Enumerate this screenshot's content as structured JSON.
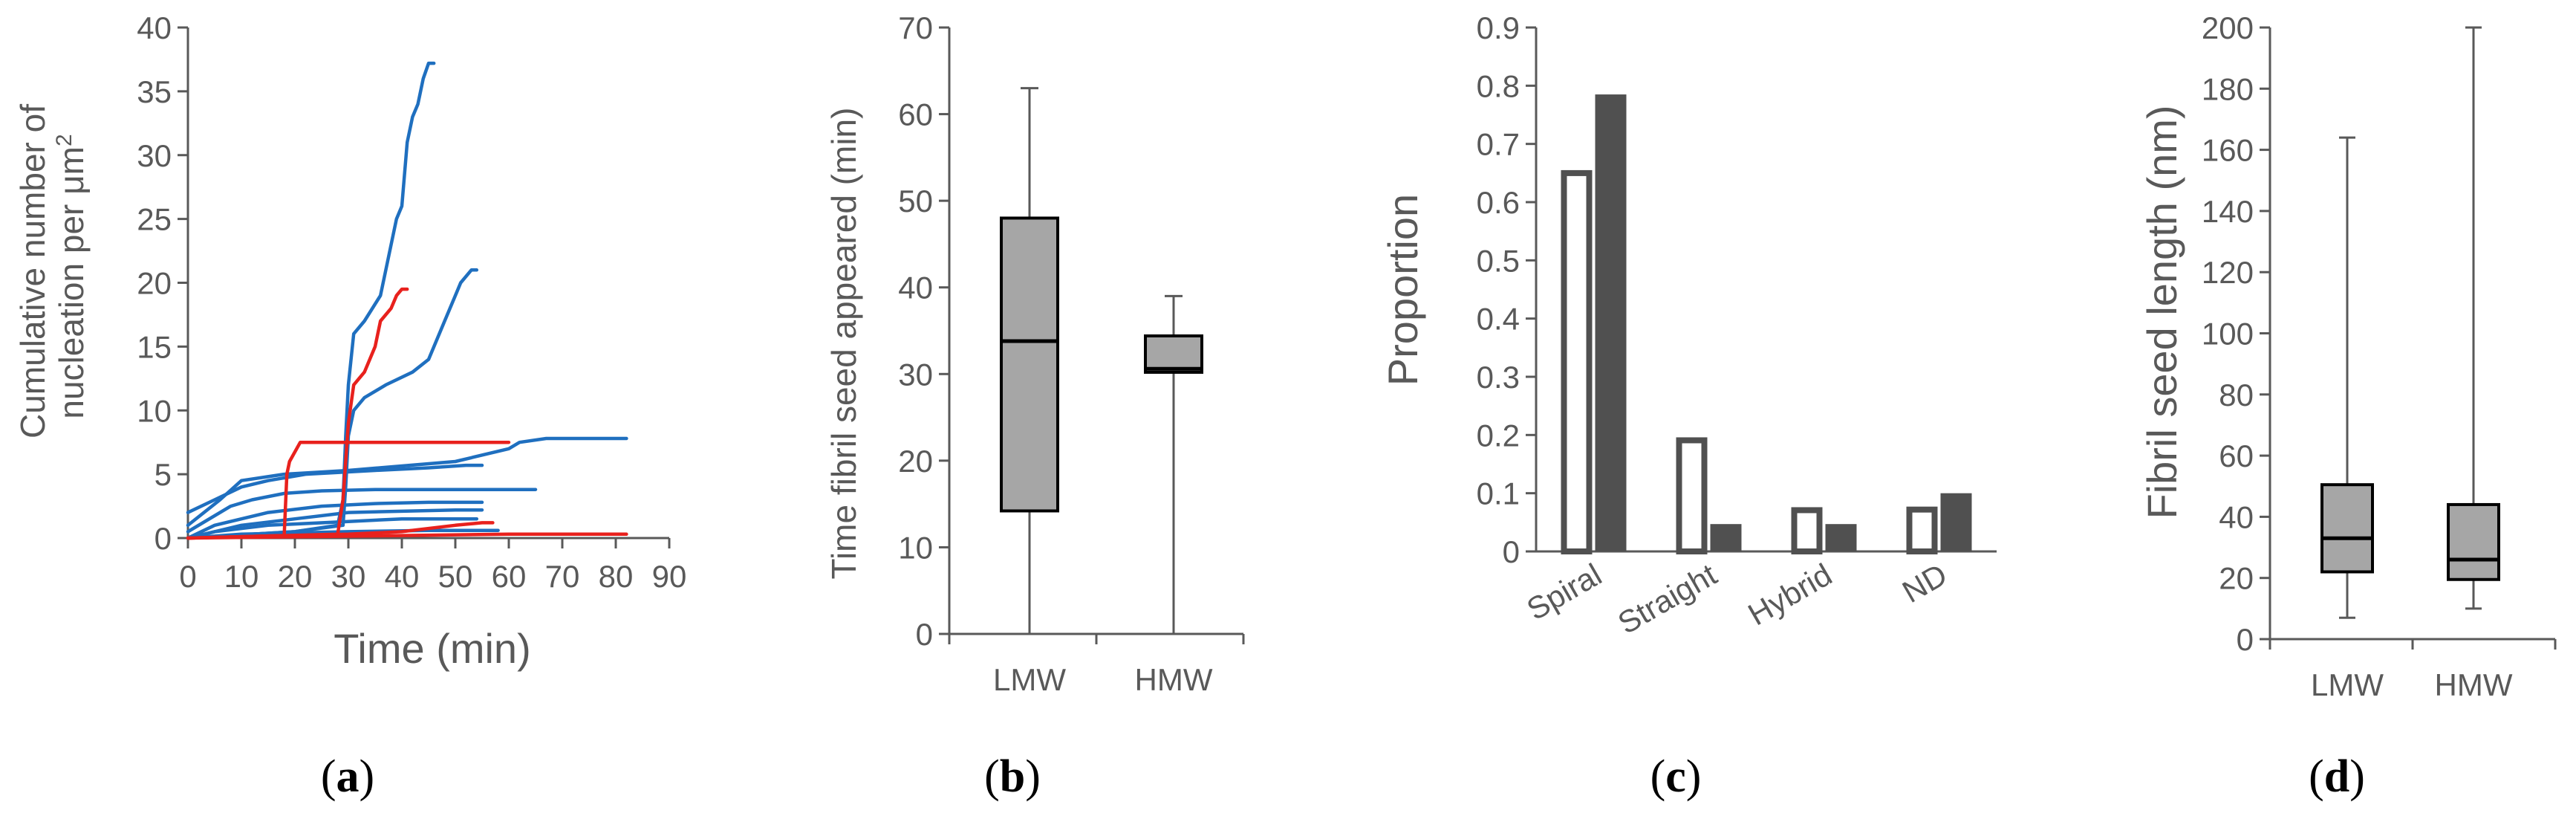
{
  "colors": {
    "axis": "#595959",
    "text": "#595959",
    "blue": "#1f6fbf",
    "red": "#e8211d",
    "box_fill": "#a6a6a6",
    "dark_bar": "#505050",
    "white_bar": "#ffffff"
  },
  "chart_data": [
    {
      "panel": "a",
      "type": "line",
      "xlabel": "Time (min)",
      "ylabel_line1": "Cumulative number of",
      "ylabel_line2": "nucleation per μm",
      "ylabel_sup": "2",
      "xlim": [
        0,
        90
      ],
      "ylim": [
        0,
        40
      ],
      "xticks": [
        "0",
        "10",
        "20",
        "30",
        "40",
        "50",
        "60",
        "70",
        "80",
        "90"
      ],
      "yticks": [
        "0",
        "5",
        "10",
        "15",
        "20",
        "25",
        "30",
        "35",
        "40"
      ],
      "series": [
        {
          "color": "blue",
          "points": [
            [
              0,
              0
            ],
            [
              20,
              0.5
            ],
            [
              28,
              1
            ],
            [
              29,
              3
            ],
            [
              29.5,
              8
            ],
            [
              30,
              12
            ],
            [
              31,
              16
            ],
            [
              33,
              17
            ],
            [
              36,
              19
            ],
            [
              37,
              21
            ],
            [
              39,
              25
            ],
            [
              40,
              26
            ],
            [
              41,
              31
            ],
            [
              42,
              33
            ],
            [
              43,
              34
            ],
            [
              44,
              36
            ],
            [
              45,
              37.2
            ],
            [
              46,
              37.2
            ]
          ]
        },
        {
          "color": "blue",
          "points": [
            [
              0,
              0
            ],
            [
              20,
              0.5
            ],
            [
              29,
              1
            ],
            [
              29.5,
              4
            ],
            [
              30,
              8
            ],
            [
              31,
              10
            ],
            [
              33,
              11
            ],
            [
              37,
              12
            ],
            [
              42,
              13
            ],
            [
              45,
              14
            ],
            [
              48,
              17
            ],
            [
              50,
              19
            ],
            [
              51,
              20
            ],
            [
              53,
              21
            ],
            [
              54,
              21
            ]
          ]
        },
        {
          "color": "blue",
          "points": [
            [
              0,
              1
            ],
            [
              3,
              2
            ],
            [
              6,
              3
            ],
            [
              10,
              4.5
            ],
            [
              18,
              5
            ],
            [
              30,
              5.3
            ],
            [
              50,
              6
            ],
            [
              60,
              7
            ],
            [
              62,
              7.5
            ],
            [
              67,
              7.8
            ],
            [
              70,
              7.8
            ],
            [
              82,
              7.8
            ]
          ]
        },
        {
          "color": "blue",
          "points": [
            [
              0,
              2
            ],
            [
              5,
              3
            ],
            [
              10,
              4
            ],
            [
              15,
              4.5
            ],
            [
              22,
              5
            ],
            [
              35,
              5.3
            ],
            [
              45,
              5.5
            ],
            [
              52,
              5.7
            ],
            [
              55,
              5.7
            ]
          ]
        },
        {
          "color": "blue",
          "points": [
            [
              0,
              0.5
            ],
            [
              8,
              2.5
            ],
            [
              12,
              3
            ],
            [
              18,
              3.5
            ],
            [
              25,
              3.7
            ],
            [
              35,
              3.8
            ],
            [
              50,
              3.8
            ],
            [
              60,
              3.8
            ],
            [
              65,
              3.8
            ]
          ]
        },
        {
          "color": "blue",
          "points": [
            [
              0,
              0
            ],
            [
              5,
              1
            ],
            [
              15,
              2
            ],
            [
              25,
              2.5
            ],
            [
              35,
              2.7
            ],
            [
              45,
              2.8
            ],
            [
              55,
              2.8
            ]
          ]
        },
        {
          "color": "blue",
          "points": [
            [
              0,
              0
            ],
            [
              10,
              1
            ],
            [
              20,
              1.5
            ],
            [
              30,
              2
            ],
            [
              40,
              2.1
            ],
            [
              50,
              2.2
            ],
            [
              55,
              2.2
            ]
          ]
        },
        {
          "color": "blue",
          "points": [
            [
              0,
              0
            ],
            [
              5,
              0.5
            ],
            [
              15,
              1
            ],
            [
              30,
              1.3
            ],
            [
              40,
              1.5
            ],
            [
              54,
              1.5
            ]
          ]
        },
        {
          "color": "blue",
          "points": [
            [
              0,
              0
            ],
            [
              10,
              0.3
            ],
            [
              30,
              0.5
            ],
            [
              45,
              0.6
            ],
            [
              58,
              0.6
            ]
          ]
        },
        {
          "color": "red",
          "points": [
            [
              0,
              0
            ],
            [
              18,
              0.2
            ],
            [
              18.5,
              5
            ],
            [
              19,
              6
            ],
            [
              21,
              7.5
            ],
            [
              30,
              7.5
            ],
            [
              45,
              7.5
            ],
            [
              60,
              7.5
            ]
          ]
        },
        {
          "color": "red",
          "points": [
            [
              0,
              0
            ],
            [
              28,
              0.3
            ],
            [
              29,
              3
            ],
            [
              30,
              9
            ],
            [
              31,
              12
            ],
            [
              33,
              13
            ],
            [
              35,
              15
            ],
            [
              36,
              17
            ],
            [
              38,
              18
            ],
            [
              39,
              19
            ],
            [
              40,
              19.5
            ],
            [
              41,
              19.5
            ]
          ]
        },
        {
          "color": "red",
          "points": [
            [
              0,
              0
            ],
            [
              20,
              0.2
            ],
            [
              30,
              0.3
            ],
            [
              40,
              0.5
            ],
            [
              50,
              1
            ],
            [
              55,
              1.2
            ],
            [
              57,
              1.2
            ]
          ]
        },
        {
          "color": "red",
          "points": [
            [
              0,
              0
            ],
            [
              40,
              0.2
            ],
            [
              60,
              0.3
            ],
            [
              82,
              0.3
            ]
          ]
        }
      ]
    },
    {
      "panel": "b",
      "type": "box",
      "ylabel": "Time fibril seed appeared (min)",
      "ylim": [
        0,
        70
      ],
      "yticks": [
        "0",
        "10",
        "20",
        "30",
        "40",
        "50",
        "60",
        "70"
      ],
      "categories": [
        "LMW",
        "HMW"
      ],
      "boxes": [
        {
          "min": 0,
          "q1": 14.2,
          "median": 33.8,
          "q3": 48,
          "max": 63
        },
        {
          "min": 0,
          "q1": 30.2,
          "median": 30.6,
          "q3": 34.4,
          "max": 39
        }
      ]
    },
    {
      "panel": "c",
      "type": "bar",
      "ylabel": "Proportion",
      "ylim": [
        0,
        0.9
      ],
      "yticks": [
        "0",
        "0.1",
        "0.2",
        "0.3",
        "0.4",
        "0.5",
        "0.6",
        "0.7",
        "0.8",
        "0.9"
      ],
      "categories": [
        "Spiral",
        "Straight",
        "Hybrid",
        "ND"
      ],
      "series": [
        {
          "name": "white",
          "values": [
            0.655,
            0.196,
            0.076,
            0.077
          ]
        },
        {
          "name": "dark",
          "values": [
            0.785,
            0.047,
            0.047,
            0.1
          ]
        }
      ]
    },
    {
      "panel": "d",
      "type": "box",
      "ylabel": "Fibril seed length (nm)",
      "ylim": [
        0,
        200
      ],
      "yticks": [
        "0",
        "20",
        "40",
        "60",
        "80",
        "100",
        "120",
        "140",
        "160",
        "180",
        "200"
      ],
      "categories": [
        "LMW",
        "HMW"
      ],
      "boxes": [
        {
          "min": 7,
          "q1": 22,
          "median": 33,
          "q3": 50.5,
          "max": 164
        },
        {
          "min": 10,
          "q1": 19.5,
          "median": 26,
          "q3": 44,
          "max": 200
        }
      ]
    }
  ],
  "panel_labels": {
    "a": "a",
    "b": "b",
    "c": "c",
    "d": "d"
  }
}
